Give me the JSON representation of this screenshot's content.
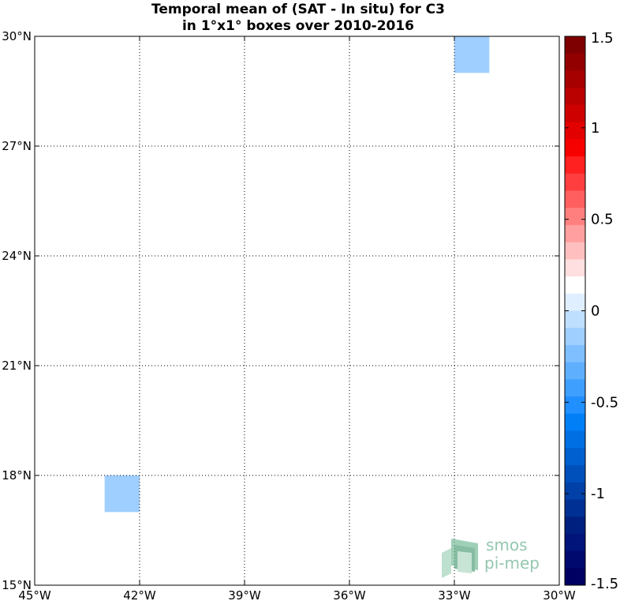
{
  "chart_data": {
    "type": "heatmap",
    "title": [
      "Temporal mean of (SAT - In situ) for C3",
      "in 1°x1° boxes over 2010-2016"
    ],
    "xlim": [
      -45,
      -30
    ],
    "ylim": [
      15,
      30
    ],
    "x_ticks": [
      {
        "value": -45,
        "label": "45°W"
      },
      {
        "value": -42,
        "label": "42°W"
      },
      {
        "value": -39,
        "label": "39°W"
      },
      {
        "value": -36,
        "label": "36°W"
      },
      {
        "value": -33,
        "label": "33°W"
      },
      {
        "value": -30,
        "label": "30°W"
      }
    ],
    "y_ticks": [
      {
        "value": 15,
        "label": "15°N"
      },
      {
        "value": 18,
        "label": "18°N"
      },
      {
        "value": 21,
        "label": "21°N"
      },
      {
        "value": 24,
        "label": "24°N"
      },
      {
        "value": 27,
        "label": "27°N"
      },
      {
        "value": 30,
        "label": "30°N"
      }
    ],
    "grid": true,
    "cells": [
      {
        "lon_min": -33,
        "lon_max": -32,
        "lat_min": 29,
        "lat_max": 30,
        "value": -0.1
      },
      {
        "lon_min": -39,
        "lon_max": -38,
        "lat_min": 22,
        "lat_max": 23,
        "value": 0.1
      },
      {
        "lon_min": -44,
        "lon_max": -43,
        "lat_min": 17,
        "lat_max": 18,
        "value": 0.1
      },
      {
        "lon_min": -43,
        "lon_max": -42,
        "lat_min": 17,
        "lat_max": 18,
        "value": -0.1
      }
    ],
    "colorbar": {
      "range": [
        -1.5,
        1.5
      ],
      "placement": "right",
      "ticks": [
        {
          "value": 1.5,
          "label": "1.5"
        },
        {
          "value": 1,
          "label": "1"
        },
        {
          "value": 0.5,
          "label": "0.5"
        },
        {
          "value": 0,
          "label": "0"
        },
        {
          "value": -0.5,
          "label": "-0.5"
        },
        {
          "value": -1,
          "label": "-1"
        },
        {
          "value": -1.5,
          "label": "-1.5"
        }
      ],
      "colors_top_to_bottom": [
        "#7f0000",
        "#930000",
        "#a70000",
        "#bb0000",
        "#cf0000",
        "#e30000",
        "#f70000",
        "#ff2020",
        "#ff3f3f",
        "#ff5f5f",
        "#ff7f7f",
        "#ff9f9f",
        "#ffbfbf",
        "#ffdfdf",
        "#ffffff",
        "#dfefff",
        "#bfdfff",
        "#9fcfff",
        "#7fbfff",
        "#5fafff",
        "#3f9fff",
        "#208fff",
        "#007ff7",
        "#006fe3",
        "#0060cf",
        "#0050bb",
        "#0040a7",
        "#003093",
        "#00207f",
        "#00147a",
        "#000a6e",
        "#000063"
      ]
    }
  },
  "logo": {
    "line1": "smos",
    "line2": "pi-mep",
    "color": "#7fbf9f"
  }
}
